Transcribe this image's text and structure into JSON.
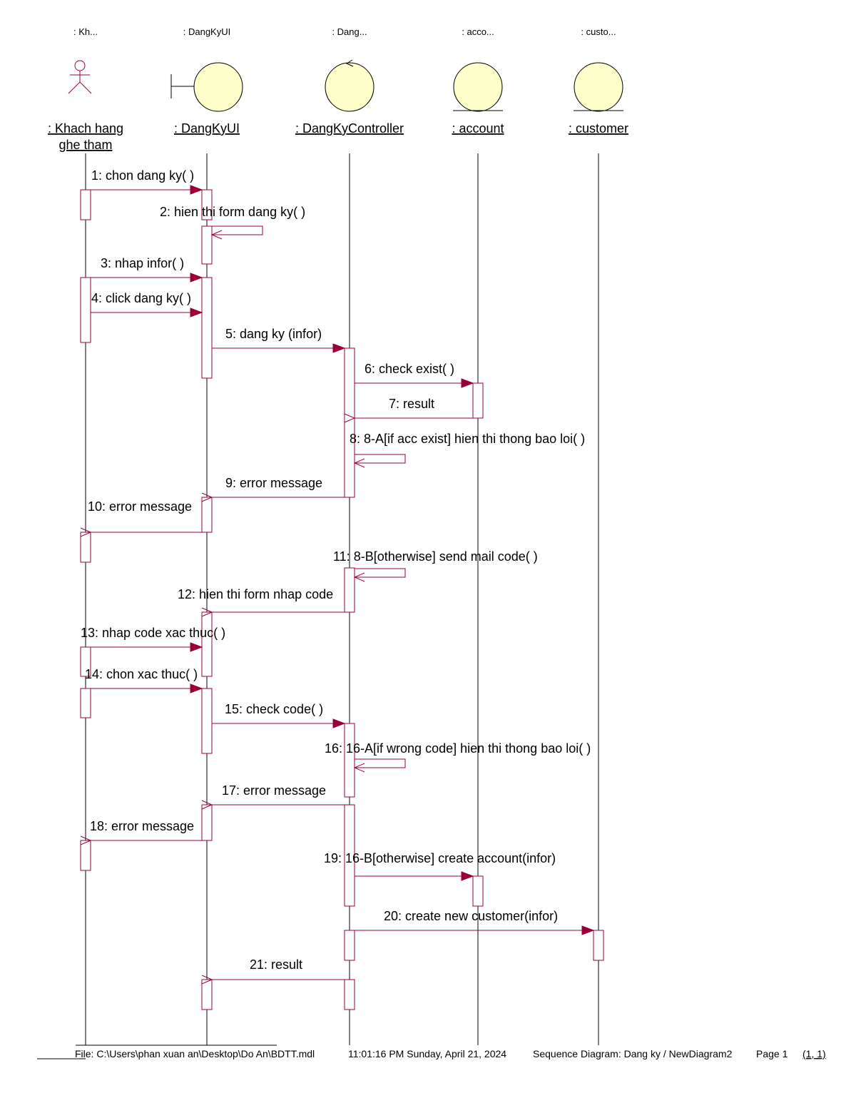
{
  "participants": [
    {
      "short": ": Kh...",
      "name1": ": Khach hang",
      "name2": "ghe tham",
      "kind": "actor"
    },
    {
      "short": ": DangKyUI",
      "name1": ": DangKyUI",
      "kind": "boundary"
    },
    {
      "short": ": Dang...",
      "name1": ": DangKyController",
      "kind": "control"
    },
    {
      "short": ": acco...",
      "name1": ": account",
      "kind": "entity"
    },
    {
      "short": ": custo...",
      "name1": ": customer",
      "kind": "entity"
    }
  ],
  "messages": [
    {
      "label": "1: chon dang ky( )",
      "from": 0,
      "to": 1,
      "kind": "call"
    },
    {
      "label": "2: hien thi form dang ky( )",
      "from": 1,
      "to": 1,
      "kind": "self"
    },
    {
      "label": "3: nhap infor( )",
      "from": 0,
      "to": 1,
      "kind": "call"
    },
    {
      "label": "4: click dang ky( )",
      "from": 0,
      "to": 1,
      "kind": "call"
    },
    {
      "label": "5: dang ky (infor)",
      "from": 1,
      "to": 2,
      "kind": "call"
    },
    {
      "label": "6: check exist( )",
      "from": 2,
      "to": 3,
      "kind": "call"
    },
    {
      "label": "7: result",
      "from": 3,
      "to": 2,
      "kind": "return"
    },
    {
      "label": "8: 8-A[if acc exist] hien thi thong bao loi( )",
      "from": 2,
      "to": 2,
      "kind": "self"
    },
    {
      "label": "9: error message",
      "from": 2,
      "to": 1,
      "kind": "return"
    },
    {
      "label": "10: error message",
      "from": 1,
      "to": 0,
      "kind": "return"
    },
    {
      "label": "11: 8-B[otherwise] send mail code( )",
      "from": 2,
      "to": 2,
      "kind": "self"
    },
    {
      "label": "12: hien thi form nhap code",
      "from": 2,
      "to": 1,
      "kind": "return"
    },
    {
      "label": "13: nhap code xac thuc( )",
      "from": 0,
      "to": 1,
      "kind": "call"
    },
    {
      "label": "14: chon xac thuc( )",
      "from": 0,
      "to": 1,
      "kind": "call"
    },
    {
      "label": "15: check code( )",
      "from": 1,
      "to": 2,
      "kind": "call"
    },
    {
      "label": "16: 16-A[if wrong code] hien thi thong bao loi( )",
      "from": 2,
      "to": 2,
      "kind": "self"
    },
    {
      "label": "17: error message",
      "from": 2,
      "to": 1,
      "kind": "return"
    },
    {
      "label": "18: error message",
      "from": 1,
      "to": 0,
      "kind": "return"
    },
    {
      "label": "19: 16-B[otherwise] create account(infor)",
      "from": 2,
      "to": 3,
      "kind": "call"
    },
    {
      "label": "20: create new customer(infor)",
      "from": 2,
      "to": 4,
      "kind": "call"
    },
    {
      "label": "21: result",
      "from": 2,
      "to": 1,
      "kind": "return"
    }
  ],
  "footer": {
    "file": "File: C:\\Users\\phan xuan an\\Desktop\\Do An\\BDTT.mdl",
    "time": "11:01:16 PM Sunday, April 21, 2024",
    "diagram": "Sequence Diagram: Dang ky / NewDiagram2",
    "page": "Page 1",
    "coords": "(1, 1)"
  },
  "colors": {
    "line": "#99003a",
    "fill": "#ffffcc",
    "lifeline": "#000000"
  }
}
